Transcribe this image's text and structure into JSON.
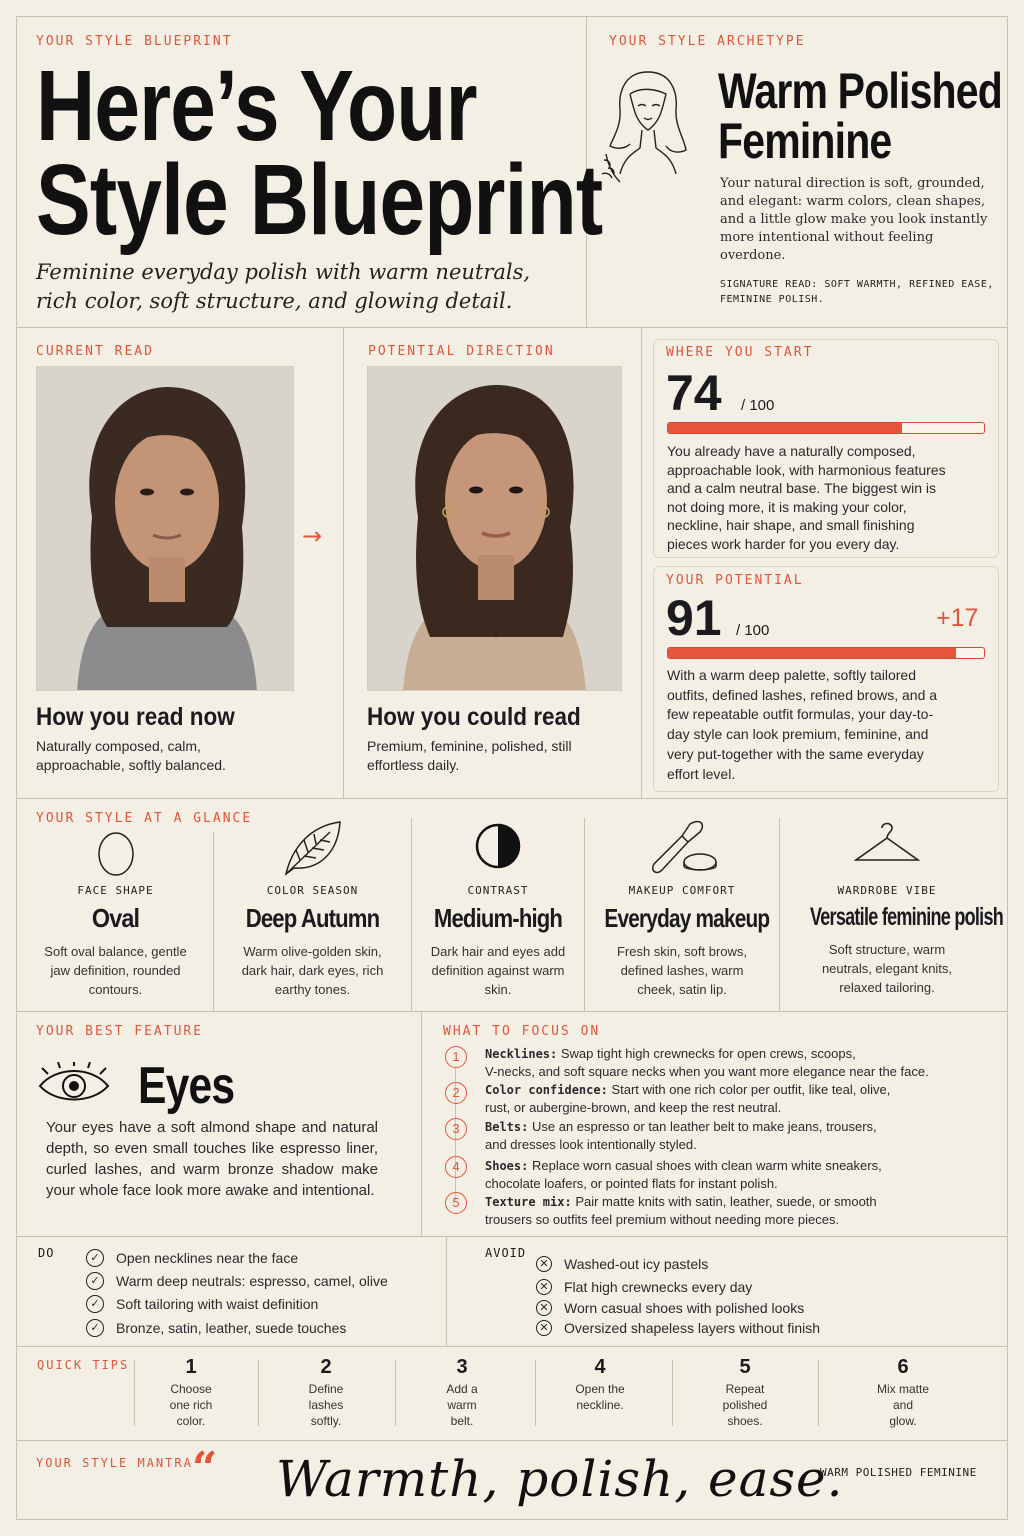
{
  "header": {
    "label": "YOUR STYLE BLUEPRINT",
    "title_line1": "Here’s Your",
    "title_line2": "Style Blueprint",
    "subtitle_line1": "Feminine everyday polish with warm neutrals,",
    "subtitle_line2": "rich color, soft structure, and glowing detail."
  },
  "archetype": {
    "label": "YOUR STYLE ARCHETYPE",
    "name_line1": "Warm Polished",
    "name_line2": "Feminine",
    "description": "Your natural direction is soft, grounded, and elegant: warm colors, clean shapes, and a little glow make you look instantly more intentional without feeling overdone.",
    "signature_line1": "SIGNATURE READ: SOFT WARMTH, REFINED EASE,",
    "signature_line2": "FEMININE POLISH."
  },
  "current": {
    "label": "CURRENT READ",
    "heading": "How you read now",
    "text": "Naturally composed, calm, approachable, softly balanced."
  },
  "potential_direction": {
    "label": "POTENTIAL DIRECTION",
    "heading": "How you could read",
    "text": "Premium, feminine, polished, still effortless daily."
  },
  "start": {
    "label": "WHERE YOU START",
    "score": "74",
    "out_of": "/ 100",
    "progress": 0.74,
    "text": "You already have a naturally composed, approachable look, with harmonious features and a calm neutral base. The biggest win is not doing more, it is making your color, neckline, hair shape, and small finishing pieces work harder for you every day."
  },
  "potential": {
    "label": "YOUR POTENTIAL",
    "score": "91",
    "out_of": "/ 100",
    "delta": "+17",
    "progress": 0.91,
    "text": "With a warm deep palette, softly tailored outfits, defined lashes, refined brows, and a few repeatable outfit formulas, your day-to-day style can look premium, feminine, and very put-together with the same everyday effort level."
  },
  "glance": {
    "label": "YOUR STYLE AT A GLANCE",
    "items": [
      {
        "icon": "oval-icon",
        "caption": "FACE SHAPE",
        "value": "Oval",
        "desc": "Soft oval balance, gentle jaw definition, rounded contours."
      },
      {
        "icon": "leaf-icon",
        "caption": "COLOR SEASON",
        "value": "Deep Autumn",
        "desc": "Warm olive-golden skin, dark hair, dark eyes, rich earthy tones."
      },
      {
        "icon": "contrast-icon",
        "caption": "CONTRAST",
        "value": "Medium-high",
        "desc": "Dark hair and eyes add definition against warm skin."
      },
      {
        "icon": "makeup-brush-icon",
        "caption": "MAKEUP COMFORT",
        "value": "Everyday makeup",
        "desc": "Fresh skin, soft brows, defined lashes, warm cheek, satin lip."
      },
      {
        "icon": "hanger-icon",
        "caption": "WARDROBE VIBE",
        "value": "Versatile feminine polish",
        "desc": "Soft structure, warm neutrals, elegant knits, relaxed tailoring."
      }
    ]
  },
  "best_feature": {
    "label": "YOUR BEST FEATURE",
    "value": "Eyes",
    "text": "Your eyes have a soft almond shape and natural depth, so even small touches like espresso liner, curled lashes, and warm bronze shadow make your whole face look more awake and intentional."
  },
  "focus": {
    "label": "WHAT TO FOCUS ON",
    "items": [
      {
        "num": "1",
        "title": "Necklines:",
        "line1": "Swap tight high crewnecks for open crews, scoops,",
        "line2": "V-necks, and soft square necks when you want more elegance near the face."
      },
      {
        "num": "2",
        "title": "Color confidence:",
        "line1": "Start with one rich color per outfit, like teal, olive,",
        "line2": "rust, or aubergine-brown, and keep the rest neutral."
      },
      {
        "num": "3",
        "title": "Belts:",
        "line1": "Use an espresso or tan leather belt to make jeans, trousers,",
        "line2": "and dresses look intentionally styled."
      },
      {
        "num": "4",
        "title": "Shoes:",
        "line1": "Replace worn casual shoes with clean warm white sneakers,",
        "line2": "chocolate loafers, or pointed flats for instant polish."
      },
      {
        "num": "5",
        "title": "Texture mix:",
        "line1": "Pair matte knits with satin, leather, suede, or smooth",
        "line2": "trousers so outfits feel premium without needing more pieces."
      }
    ]
  },
  "do": {
    "label": "DO",
    "items": [
      "Open necklines near the face",
      "Warm deep neutrals: espresso, camel, olive",
      "Soft tailoring with waist definition",
      "Bronze, satin, leather, suede touches"
    ]
  },
  "avoid": {
    "label": "AVOID",
    "items": [
      "Washed-out icy pastels",
      "Flat high crewnecks every day",
      "Worn casual shoes with polished looks",
      "Oversized shapeless layers without finish"
    ]
  },
  "tips": {
    "label": "QUICK TIPS",
    "items": [
      {
        "num": "1",
        "l1": "Choose",
        "l2": "one rich",
        "l3": "color."
      },
      {
        "num": "2",
        "l1": "Define",
        "l2": "lashes",
        "l3": "softly."
      },
      {
        "num": "3",
        "l1": "Add a",
        "l2": "warm",
        "l3": "belt."
      },
      {
        "num": "4",
        "l1": "Open the",
        "l2": "neckline.",
        "l3": ""
      },
      {
        "num": "5",
        "l1": "Repeat",
        "l2": "polished",
        "l3": "shoes."
      },
      {
        "num": "6",
        "l1": "Mix matte",
        "l2": "and",
        "l3": "glow."
      }
    ]
  },
  "mantra": {
    "label": "YOUR STYLE MANTRA",
    "quote_mark": "“",
    "text": "Warmth, polish, ease.",
    "signoff": "WARM POLISHED FEMININE"
  },
  "colors": {
    "accent": "#e0563b",
    "background": "#f4efe4",
    "ink": "#1b1b1f"
  }
}
